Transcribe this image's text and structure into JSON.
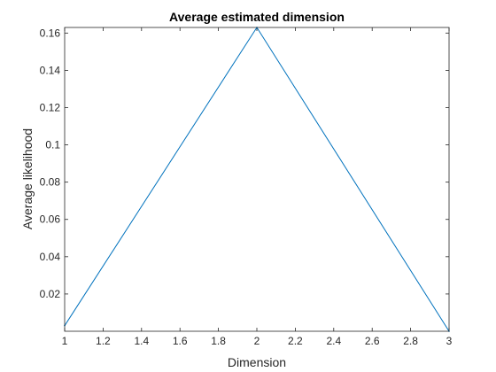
{
  "chart_data": {
    "type": "line",
    "title": "Average estimated dimension",
    "xlabel": "Dimension",
    "ylabel": "Average likelihood",
    "xlim": [
      1,
      3
    ],
    "ylim": [
      0,
      0.163
    ],
    "grid": false,
    "x_ticks": [
      "1",
      "1.2",
      "1.4",
      "1.6",
      "1.8",
      "2",
      "2.2",
      "2.4",
      "2.6",
      "2.8",
      "3"
    ],
    "y_ticks": [
      "0.02",
      "0.04",
      "0.06",
      "0.08",
      "0.1",
      "0.12",
      "0.14",
      "0.16"
    ],
    "series": [
      {
        "x": [
          1,
          2,
          3
        ],
        "y": [
          0.003,
          0.163,
          0.0
        ],
        "color": "#0072bd"
      }
    ]
  }
}
